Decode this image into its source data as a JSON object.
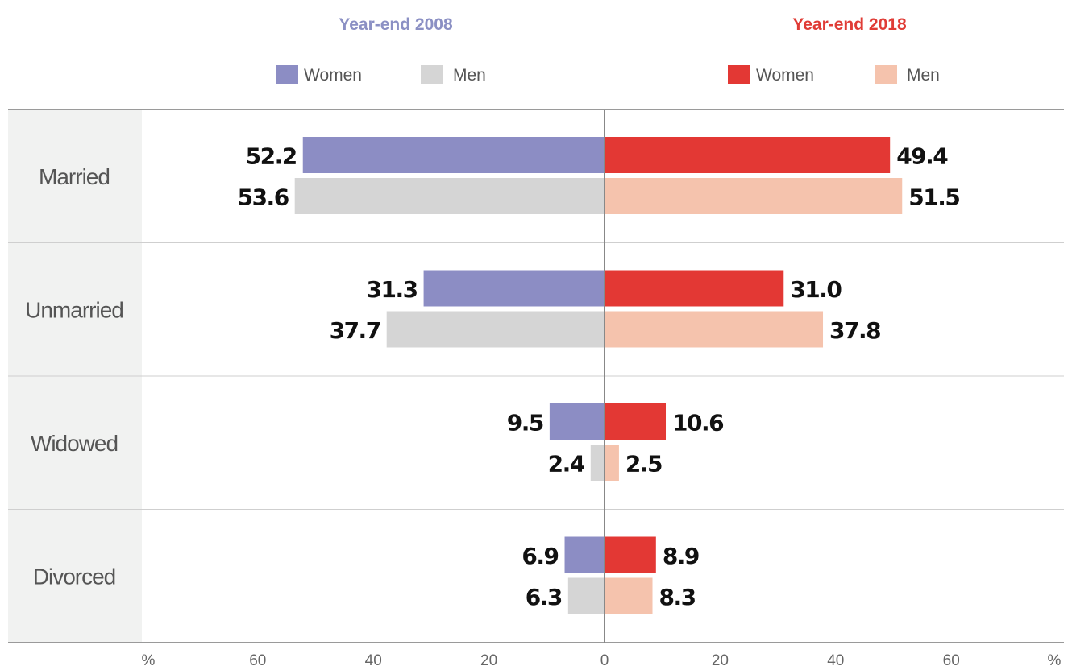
{
  "chart_data": {
    "type": "bar",
    "orientation": "horizontal-butterfly",
    "categories": [
      "Married",
      "Unmarried",
      "Widowed",
      "Divorced"
    ],
    "groups": [
      {
        "title": "Year-end 2008",
        "title_color": "#8b90c4",
        "side": "left",
        "series": [
          {
            "name": "Women",
            "color": "#8c8dc4",
            "values": [
              52.2,
              31.3,
              9.5,
              6.9
            ]
          },
          {
            "name": "Men",
            "color": "#d5d5d5",
            "values": [
              53.6,
              37.7,
              2.4,
              6.3
            ]
          }
        ]
      },
      {
        "title": "Year-end 2018",
        "title_color": "#e03c36",
        "side": "right",
        "series": [
          {
            "name": "Women",
            "color": "#e33834",
            "values": [
              49.4,
              31.0,
              10.6,
              8.9
            ]
          },
          {
            "name": "Men",
            "color": "#f5c3ad",
            "values": [
              51.5,
              37.8,
              2.5,
              8.3
            ]
          }
        ]
      }
    ],
    "value_labels": [
      [
        [
          "52.2",
          "53.6"
        ],
        [
          "31.3",
          "37.7"
        ],
        [
          "9.5",
          "2.4"
        ],
        [
          "6.9",
          "6.3"
        ]
      ],
      [
        [
          "49.4",
          "51.5"
        ],
        [
          "31.0",
          "37.8"
        ],
        [
          "10.6",
          "2.5"
        ],
        [
          "8.9",
          "8.3"
        ]
      ]
    ],
    "x_ticks": [
      60,
      40,
      20,
      0,
      20,
      40,
      60
    ],
    "x_unit_label": "%",
    "xlim": [
      -75,
      75
    ],
    "grid": false,
    "legend_position": "top"
  }
}
